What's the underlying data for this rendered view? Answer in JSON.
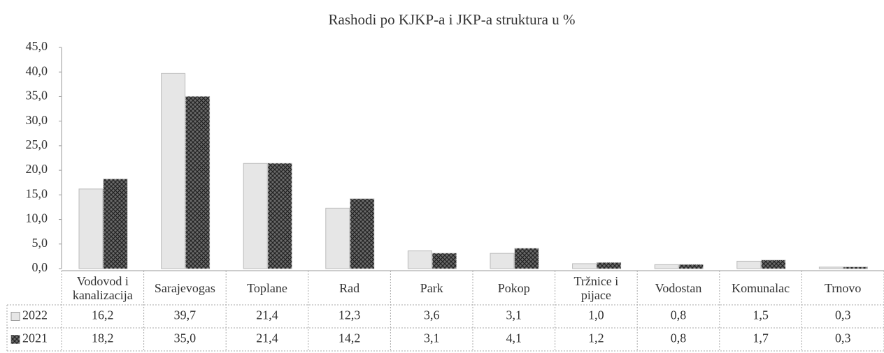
{
  "chart_data": {
    "type": "bar",
    "title": "Rashodi po KJKP-a i JKP-a struktura u %",
    "categories": [
      "Vodovod i kanalizacija",
      "Sarajevogas",
      "Toplane",
      "Rad",
      "Park",
      "Pokop",
      "Tržnice i pijace",
      "Vodostan",
      "Komunalac",
      "Trnovo"
    ],
    "series": [
      {
        "name": "2022",
        "color": "#e6e6e6",
        "values": [
          16.2,
          39.7,
          21.4,
          12.3,
          3.6,
          3.1,
          1.0,
          0.8,
          1.5,
          0.3
        ],
        "value_labels": [
          "16,2",
          "39,7",
          "21,4",
          "12,3",
          "3,6",
          "3,1",
          "1,0",
          "0,8",
          "1,5",
          "0,3"
        ]
      },
      {
        "name": "2021",
        "color": "#6a6a6a",
        "values": [
          18.2,
          35.0,
          21.4,
          14.2,
          3.1,
          4.1,
          1.2,
          0.8,
          1.7,
          0.3
        ],
        "value_labels": [
          "18,2",
          "35,0",
          "21,4",
          "14,2",
          "3,1",
          "4,1",
          "1,2",
          "0,8",
          "1,7",
          "0,3"
        ]
      }
    ],
    "ylim": [
      0,
      45
    ],
    "yticks": [
      {
        "value": 0,
        "label": "0,0"
      },
      {
        "value": 5,
        "label": "5,0"
      },
      {
        "value": 10,
        "label": "10,0"
      },
      {
        "value": 15,
        "label": "15,0"
      },
      {
        "value": 20,
        "label": "20,0"
      },
      {
        "value": 25,
        "label": "25,0"
      },
      {
        "value": 30,
        "label": "30,0"
      },
      {
        "value": 35,
        "label": "35,0"
      },
      {
        "value": 40,
        "label": "40,0"
      },
      {
        "value": 45,
        "label": "45,0"
      }
    ],
    "grid": false
  }
}
